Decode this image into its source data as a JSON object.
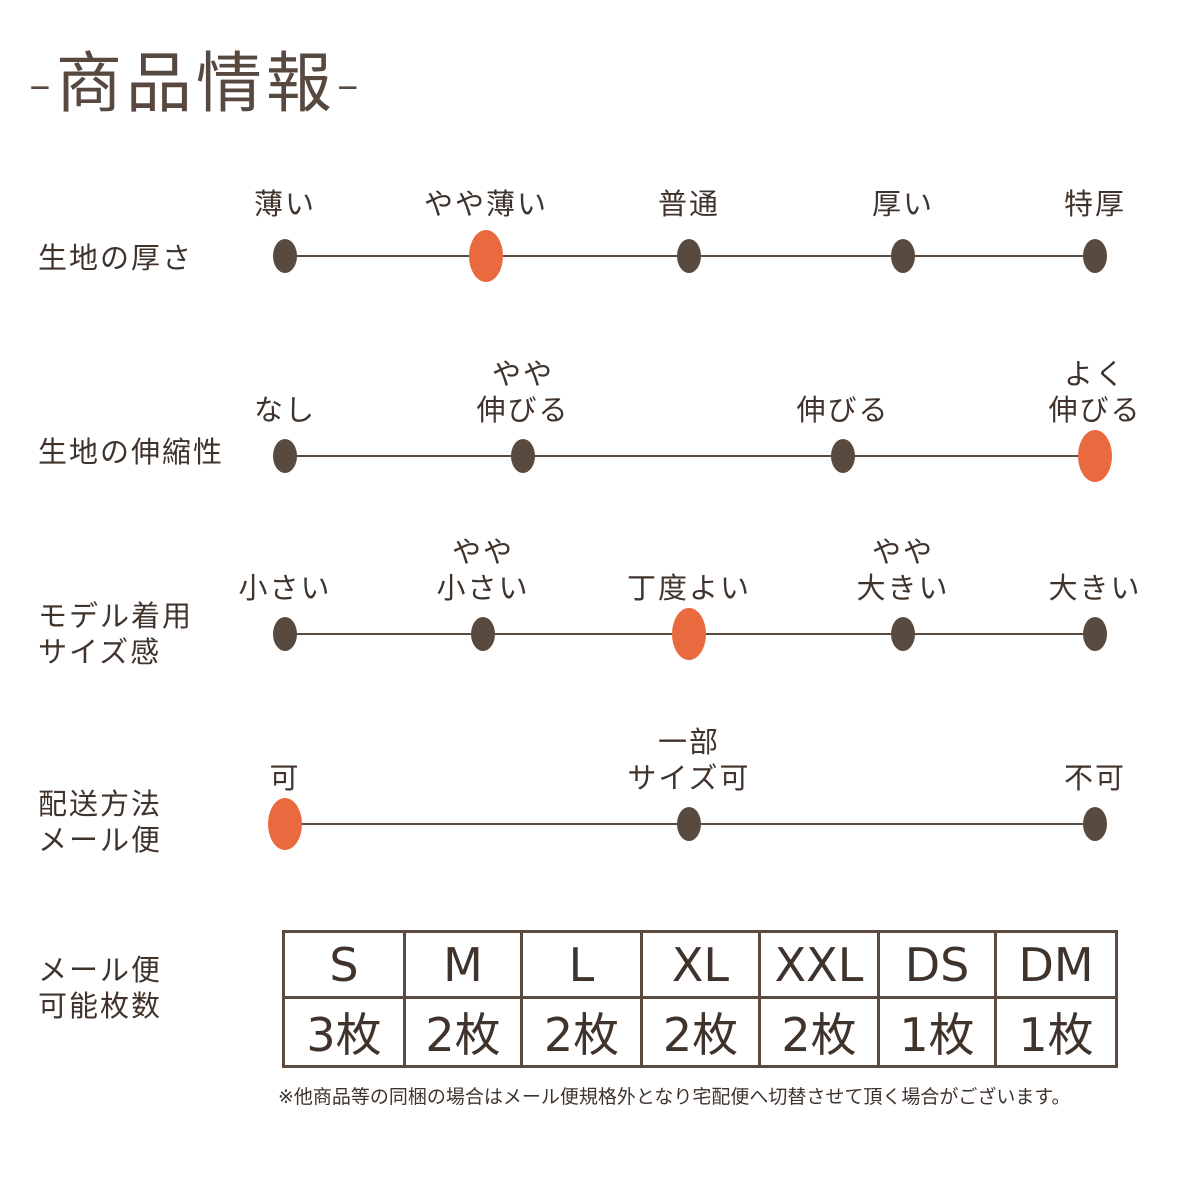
{
  "title": "-商品情報-",
  "colors": {
    "dot": "#594a40",
    "selected": "#ea6a3f",
    "line": "#5a4a40"
  },
  "scales": [
    {
      "label": [
        "生地の厚さ"
      ],
      "options": [
        [
          "薄い"
        ],
        [
          "やや薄い"
        ],
        [
          "普通"
        ],
        [
          "厚い"
        ],
        [
          "特厚"
        ]
      ],
      "selected_index": 1
    },
    {
      "label": [
        "生地の伸縮性"
      ],
      "options": [
        [
          "なし"
        ],
        [
          "やや",
          "伸びる"
        ],
        [
          "伸びる"
        ],
        [
          "よく",
          "伸びる"
        ]
      ],
      "selected_index": 3
    },
    {
      "label": [
        "モデル着用",
        "サイズ感"
      ],
      "options": [
        [
          "小さい"
        ],
        [
          "やや",
          "小さい"
        ],
        [
          "丁度よい"
        ],
        [
          "やや",
          "大きい"
        ],
        [
          "大きい"
        ]
      ],
      "selected_index": 2
    },
    {
      "label": [
        "配送方法",
        "メール便"
      ],
      "options": [
        [
          "可"
        ],
        [
          "一部",
          "サイズ可"
        ],
        [
          "不可"
        ]
      ],
      "selected_index": 0
    }
  ],
  "mail": {
    "label": [
      "メール便",
      "可能枚数"
    ],
    "sizes": [
      "S",
      "M",
      "L",
      "XL",
      "XXL",
      "DS",
      "DM"
    ],
    "counts": [
      "3枚",
      "2枚",
      "2枚",
      "2枚",
      "2枚",
      "1枚",
      "1枚"
    ]
  },
  "note": "※他商品等の同梱の場合はメール便規格外となり宅配便へ切替させて頂く場合がございます。"
}
